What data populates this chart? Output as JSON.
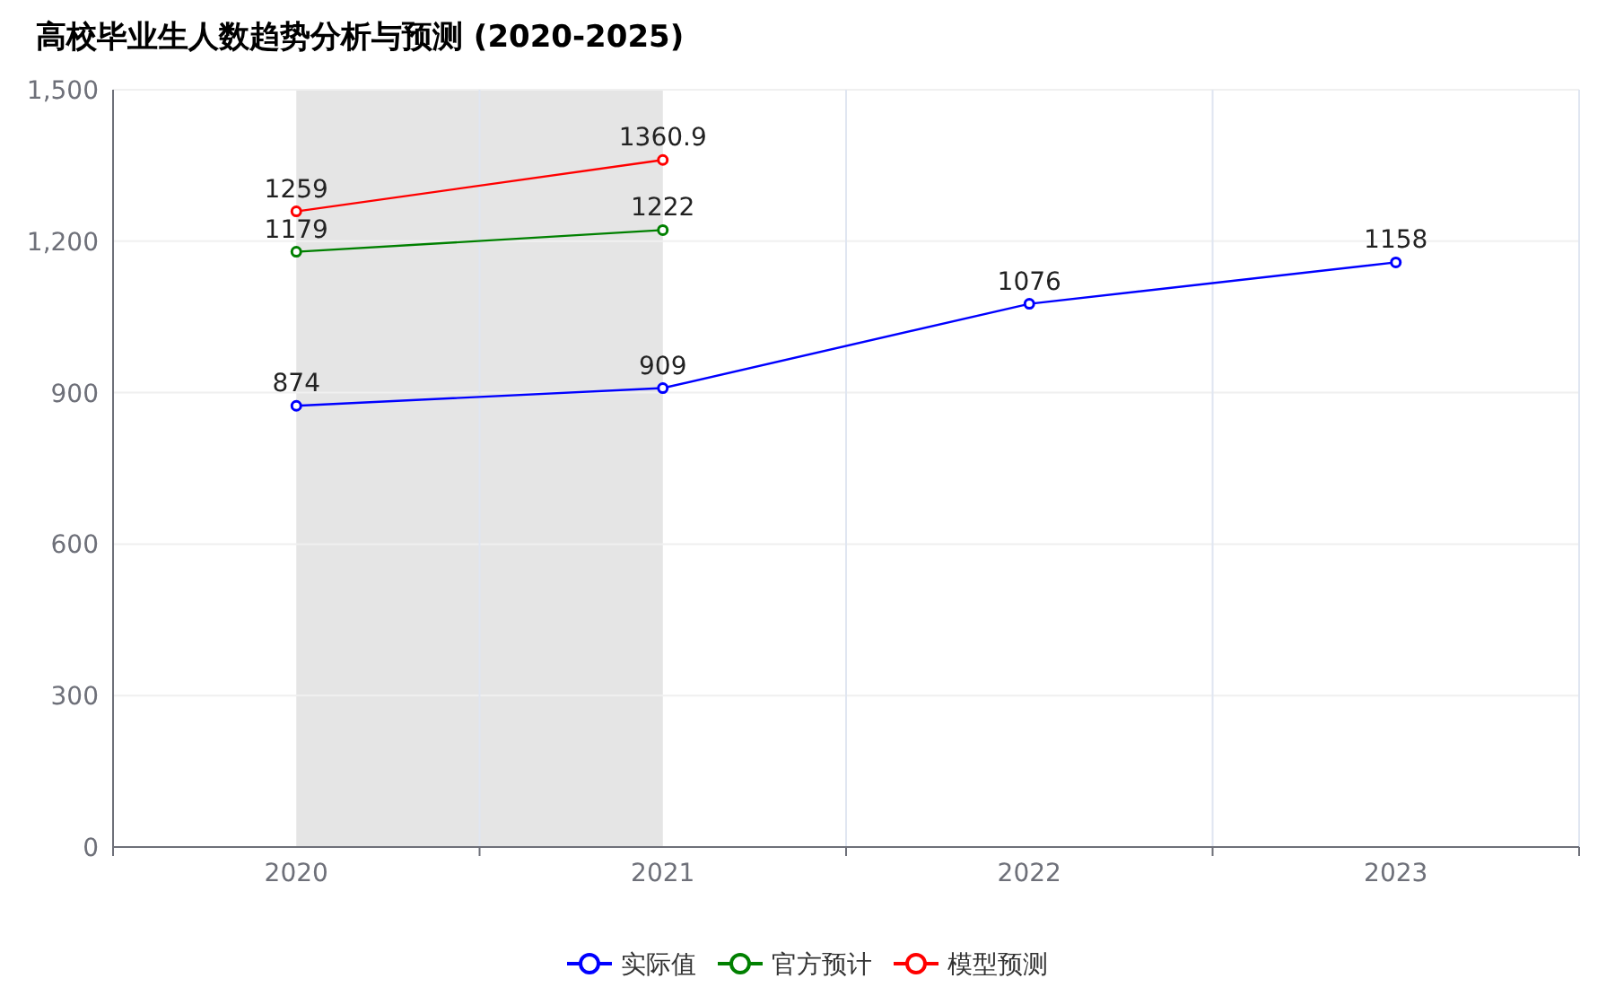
{
  "chart_data": {
    "type": "line",
    "title": "高校毕业生人数趋势分析与预测 (2020-2025)",
    "categories": [
      "2020",
      "2021",
      "2022",
      "2023"
    ],
    "series": [
      {
        "name": "实际值",
        "color": "#0000ff",
        "values": [
          874,
          909,
          1076,
          1158
        ]
      },
      {
        "name": "官方预计",
        "color": "#008000",
        "values": [
          1179,
          1222,
          null,
          null
        ]
      },
      {
        "name": "模型预测",
        "color": "#ff0000",
        "values": [
          1259,
          1360.9,
          null,
          null
        ]
      }
    ],
    "bands": [
      {
        "axis": "x",
        "from": "2020",
        "to": "2021",
        "color": "#e5e5e5"
      }
    ],
    "ylim": [
      0,
      1500
    ],
    "yticks": [
      0,
      300,
      600,
      900,
      {
        "value": 1200,
        "label": "1,200"
      },
      {
        "value": 1500,
        "label": "1,500"
      }
    ],
    "grid": true,
    "legend": "bottom",
    "marker": "circle",
    "line_style": "solid",
    "data_labels": true
  }
}
